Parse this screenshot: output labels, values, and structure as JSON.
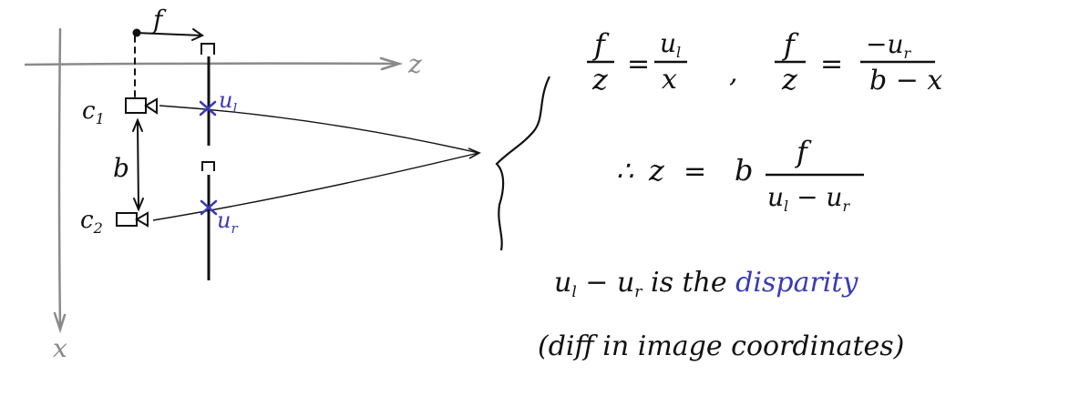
{
  "colors": {
    "ink": "#111111",
    "axis": "#8a8a8a",
    "accent": "#3a3ab8"
  },
  "diagram": {
    "axis_z_label": "z",
    "axis_x_label": "x",
    "focal_label": "f",
    "baseline_label": "b",
    "camera_left_label": "c1",
    "camera_right_label": "c2",
    "image_point_left": "u_l",
    "image_point_right": "u_r"
  },
  "equations": {
    "eq1": {
      "numerator": "f",
      "denominator": "z",
      "equals": "=",
      "rhs_numerator": "u_l",
      "rhs_denominator": "x"
    },
    "separator": ",",
    "eq2": {
      "numerator": "f",
      "denominator": "z",
      "equals": "=",
      "rhs_numerator": "−u_r",
      "rhs_denominator": "b − x"
    },
    "result": {
      "therefore": "∴",
      "lhs": "z",
      "equals": "=",
      "factor": "b",
      "numerator": "f",
      "denominator": "u_l − u_r"
    }
  },
  "notes": {
    "line1_prefix": "u_l − u_r is the",
    "line1_highlight": "disparity",
    "line2": "(diff in image coordinates)"
  }
}
